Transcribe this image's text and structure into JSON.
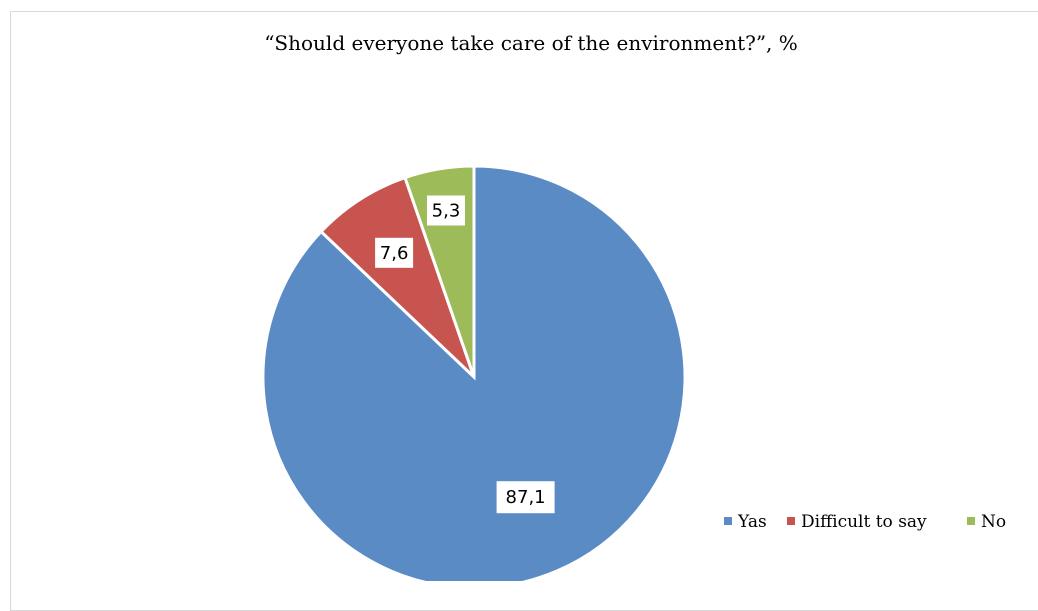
{
  "chart_data": {
    "type": "pie",
    "title": "“Should everyone take care of the environment?”, %",
    "categories": [
      "Yas",
      "Difficult to say",
      "No"
    ],
    "values": [
      87.1,
      7.6,
      5.3
    ],
    "data_labels": [
      "87,1",
      "7,6",
      "5,3"
    ],
    "colors": [
      "#5b8bc5",
      "#c85450",
      "#9dbb59"
    ],
    "legend_position": "bottom-right",
    "start_angle": "12 o'clock",
    "direction": "clockwise"
  }
}
